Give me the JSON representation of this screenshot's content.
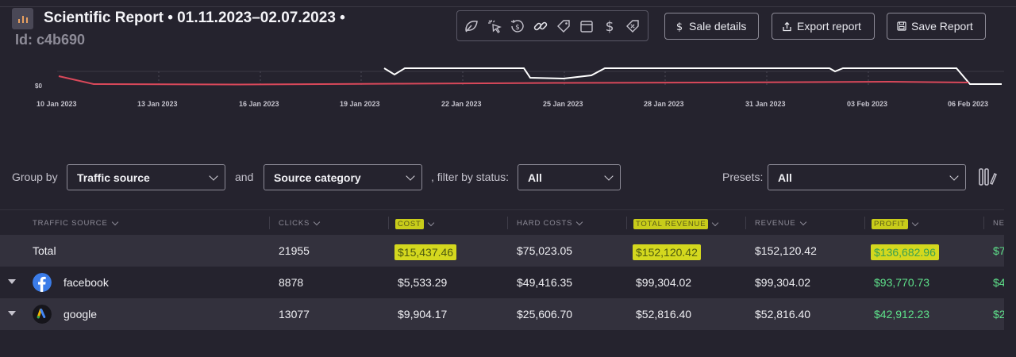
{
  "header": {
    "title": "Scientific Report • 01.11.2023–02.07.2023 •",
    "subtitle": "Id: c4b690",
    "buttons": {
      "sale_details": "Sale details",
      "export_report": "Export report",
      "save_report": "Save Report"
    },
    "tray_icons": [
      "leaf-icon",
      "click-icon",
      "refund-icon",
      "link-icon",
      "tag-icon",
      "calendar-icon",
      "dollar-icon",
      "discount-tag-icon"
    ]
  },
  "chart_data": {
    "type": "line",
    "y_tick_label": "$0",
    "x_tick_labels": [
      "10 Jan 2023",
      "13 Jan 2023",
      "16 Jan 2023",
      "19 Jan 2023",
      "22 Jan 2023",
      "25 Jan 2023",
      "28 Jan 2023",
      "31 Jan 2023",
      "03 Feb 2023",
      "06 Feb 2023"
    ],
    "series_colors": [
      "#ffffff",
      "#d9485a"
    ]
  },
  "filters": {
    "group_by_label": "Group by",
    "group_by_value": "Traffic source",
    "and_label": "and",
    "second_group_value": "Source category",
    "status_label": ", filter by status:",
    "status_value": "All",
    "presets_label": "Presets:",
    "presets_value": "All"
  },
  "table": {
    "columns": [
      "TRAFFIC SOURCE",
      "CLICKS",
      "COST",
      "HARD COSTS",
      "TOTAL REVENUE",
      "REVENUE",
      "PROFIT",
      "NE"
    ],
    "total": {
      "label": "Total",
      "clicks": "21955",
      "cost": "$15,437.46",
      "hard_costs": "$75,023.05",
      "total_revenue": "$152,120.42",
      "revenue": "$152,120.42",
      "profit": "$136,682.96",
      "next": "$7"
    },
    "rows": [
      {
        "source": "facebook",
        "clicks": "8878",
        "cost": "$5,533.29",
        "hard_costs": "$49,416.35",
        "total_revenue": "$99,304.02",
        "revenue": "$99,304.02",
        "profit": "$93,770.73",
        "next": "$4"
      },
      {
        "source": "google",
        "clicks": "13077",
        "cost": "$9,904.17",
        "hard_costs": "$25,606.70",
        "total_revenue": "$52,816.40",
        "revenue": "$52,816.40",
        "profit": "$42,912.23",
        "next": "$2"
      }
    ]
  },
  "colors": {
    "background": "#25232e",
    "row_alt": "#33313d",
    "profit_green": "#5ee08a",
    "highlight": "#d4d81e"
  }
}
